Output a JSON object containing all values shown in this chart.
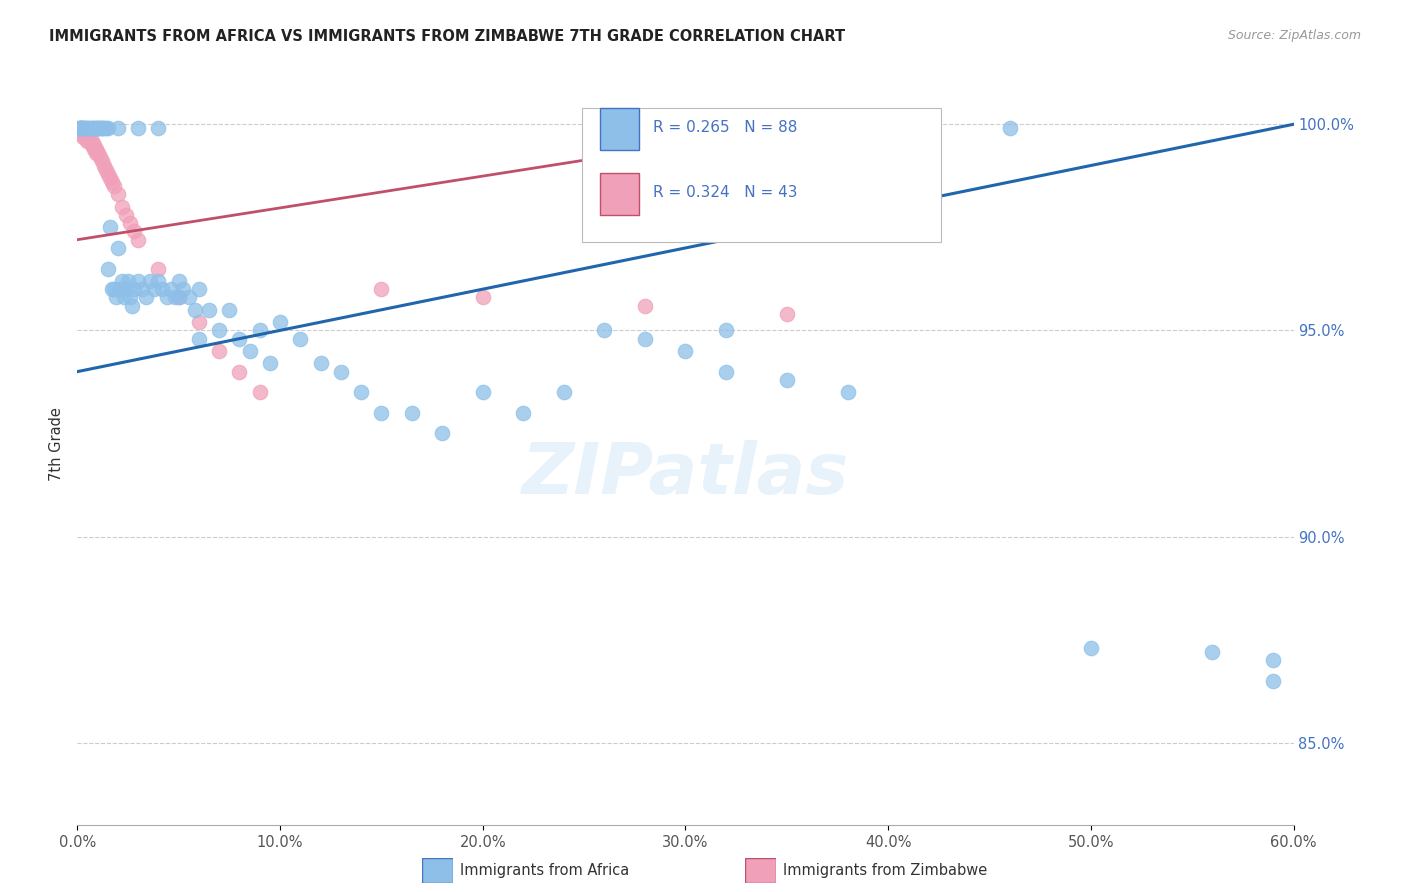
{
  "title": "IMMIGRANTS FROM AFRICA VS IMMIGRANTS FROM ZIMBABWE 7TH GRADE CORRELATION CHART",
  "source": "Source: ZipAtlas.com",
  "ylabel_label": "7th Grade",
  "xlim": [
    0.0,
    0.6
  ],
  "ylim": [
    0.83,
    1.015
  ],
  "r_africa": 0.265,
  "n_africa": 88,
  "r_zimbabwe": 0.324,
  "n_zimbabwe": 43,
  "legend_africa": "Immigrants from Africa",
  "legend_zimbabwe": "Immigrants from Zimbabwe",
  "color_africa": "#8dbfe8",
  "color_zimbabwe": "#f0a0b8",
  "line_color_africa": "#2166ac",
  "line_color_zimbabwe": "#c0506a",
  "watermark": "ZIPatlas",
  "background_color": "#ffffff",
  "grid_color": "#cccccc",
  "africa_line_x0": 0.0,
  "africa_line_y0": 0.94,
  "africa_line_x1": 0.6,
  "africa_line_y1": 1.0,
  "zimb_line_x0": 0.0,
  "zimb_line_y0": 0.972,
  "zimb_line_x1": 0.35,
  "zimb_line_y1": 0.999,
  "africa_x": [
    0.001,
    0.002,
    0.002,
    0.003,
    0.003,
    0.004,
    0.005,
    0.006,
    0.007,
    0.008,
    0.009,
    0.01,
    0.01,
    0.011,
    0.012,
    0.013,
    0.014,
    0.015,
    0.016,
    0.017,
    0.018,
    0.019,
    0.02,
    0.021,
    0.022,
    0.023,
    0.024,
    0.025,
    0.026,
    0.027,
    0.028,
    0.03,
    0.032,
    0.034,
    0.036,
    0.038,
    0.04,
    0.042,
    0.044,
    0.046,
    0.048,
    0.05,
    0.052,
    0.055,
    0.058,
    0.06,
    0.065,
    0.07,
    0.075,
    0.08,
    0.085,
    0.09,
    0.095,
    0.1,
    0.11,
    0.12,
    0.13,
    0.14,
    0.15,
    0.165,
    0.18,
    0.2,
    0.22,
    0.24,
    0.26,
    0.28,
    0.3,
    0.32,
    0.35,
    0.38,
    0.002,
    0.003,
    0.005,
    0.007,
    0.009,
    0.012,
    0.015,
    0.02,
    0.03,
    0.04,
    0.05,
    0.06,
    0.32,
    0.46,
    0.5,
    0.56,
    0.59,
    0.59
  ],
  "africa_y": [
    0.999,
    0.999,
    0.999,
    0.999,
    0.999,
    0.999,
    0.999,
    0.999,
    0.999,
    0.999,
    0.999,
    0.999,
    0.999,
    0.999,
    0.999,
    0.999,
    0.999,
    0.965,
    0.975,
    0.96,
    0.96,
    0.958,
    0.97,
    0.96,
    0.962,
    0.958,
    0.96,
    0.962,
    0.958,
    0.956,
    0.96,
    0.962,
    0.96,
    0.958,
    0.962,
    0.96,
    0.962,
    0.96,
    0.958,
    0.96,
    0.958,
    0.962,
    0.96,
    0.958,
    0.955,
    0.96,
    0.955,
    0.95,
    0.955,
    0.948,
    0.945,
    0.95,
    0.942,
    0.952,
    0.948,
    0.942,
    0.94,
    0.935,
    0.93,
    0.93,
    0.925,
    0.935,
    0.93,
    0.935,
    0.95,
    0.948,
    0.945,
    0.94,
    0.938,
    0.935,
    0.999,
    0.999,
    0.999,
    0.999,
    0.999,
    0.999,
    0.999,
    0.999,
    0.999,
    0.999,
    0.958,
    0.948,
    0.95,
    0.999,
    0.873,
    0.872,
    0.87,
    0.865
  ],
  "zimbabwe_x": [
    0.001,
    0.001,
    0.002,
    0.002,
    0.003,
    0.003,
    0.004,
    0.004,
    0.005,
    0.005,
    0.006,
    0.006,
    0.007,
    0.007,
    0.008,
    0.008,
    0.009,
    0.009,
    0.01,
    0.011,
    0.012,
    0.013,
    0.014,
    0.015,
    0.016,
    0.017,
    0.018,
    0.02,
    0.022,
    0.024,
    0.026,
    0.028,
    0.03,
    0.04,
    0.05,
    0.06,
    0.07,
    0.08,
    0.09,
    0.15,
    0.2,
    0.28,
    0.35
  ],
  "zimbabwe_y": [
    0.999,
    0.998,
    0.999,
    0.998,
    0.998,
    0.997,
    0.998,
    0.997,
    0.997,
    0.996,
    0.997,
    0.996,
    0.996,
    0.995,
    0.995,
    0.994,
    0.994,
    0.993,
    0.993,
    0.992,
    0.991,
    0.99,
    0.989,
    0.988,
    0.987,
    0.986,
    0.985,
    0.983,
    0.98,
    0.978,
    0.976,
    0.974,
    0.972,
    0.965,
    0.958,
    0.952,
    0.945,
    0.94,
    0.935,
    0.96,
    0.958,
    0.956,
    0.954
  ]
}
